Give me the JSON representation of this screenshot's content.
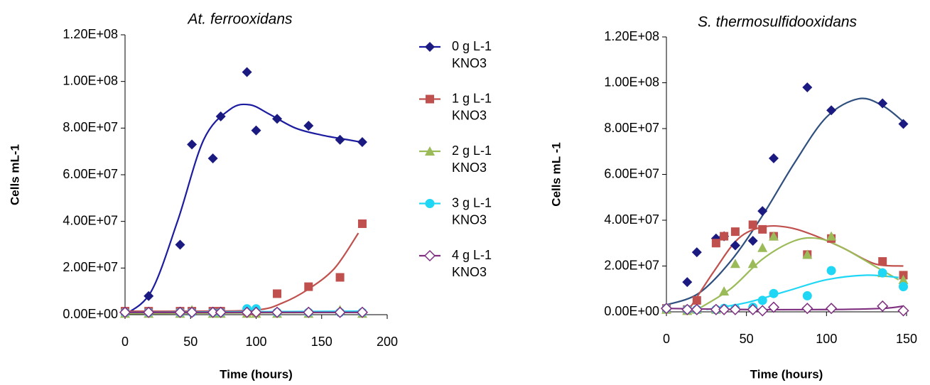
{
  "chart_data": [
    {
      "type": "scatter",
      "title": "At. ferrooxidans",
      "x_label": "Time (hours)",
      "y_label": "Cells mL-1",
      "xlim": [
        0,
        200
      ],
      "xticks": [
        0,
        50,
        100,
        150,
        200
      ],
      "ylim": [
        0,
        120000000
      ],
      "yticks": [
        {
          "value": 0,
          "label": "0.00E+00"
        },
        {
          "value": 20000000,
          "label": "2.00E+07"
        },
        {
          "value": 40000000,
          "label": "4.00E+07"
        },
        {
          "value": 60000000,
          "label": "6.00E+07"
        },
        {
          "value": 80000000,
          "label": "8.00E+07"
        },
        {
          "value": 100000000,
          "label": "1.00E+08"
        },
        {
          "value": 120000000,
          "label": "1.20E+08"
        }
      ],
      "legend": "right",
      "x": [
        0,
        18,
        42,
        51,
        67,
        73,
        93,
        100,
        116,
        140,
        164,
        181
      ],
      "series": [
        {
          "name": "0 g L-1 KNO3",
          "color": "#1a1a80",
          "line_color": "#1c1ca0",
          "marker": "diamond",
          "values": [
            1000000,
            8000000,
            30000000,
            73000000,
            67000000,
            85000000,
            104000000,
            79000000,
            84000000,
            81000000,
            75000000,
            74000000
          ],
          "trend_x": [
            0,
            20,
            40,
            60,
            80,
            95,
            110,
            130,
            150,
            170,
            180
          ],
          "trend_y": [
            0,
            10000000,
            40000000,
            75000000,
            88000000,
            90000000,
            86000000,
            80000000,
            77000000,
            75000000,
            74000000
          ]
        },
        {
          "name": "1 g L-1 KNO3",
          "color": "#c0504d",
          "line_color": "#c0504d",
          "marker": "square",
          "values": [
            1500000,
            1500000,
            1500000,
            1500000,
            1500000,
            1500000,
            1500000,
            1500000,
            9000000,
            12000000,
            16000000,
            39000000
          ],
          "trend_x": [
            0,
            50,
            100,
            120,
            140,
            160,
            178
          ],
          "trend_y": [
            1500000,
            1500000,
            2000000,
            5000000,
            11000000,
            20000000,
            35000000
          ]
        },
        {
          "name": "2 g L-1 KNO3",
          "color": "#9bbb59",
          "line_color": "#9bbb59",
          "marker": "triangle",
          "values": [
            500000,
            500000,
            500000,
            2000000,
            500000,
            500000,
            500000,
            500000,
            500000,
            500000,
            2000000,
            500000
          ],
          "trend_x": [
            0,
            178
          ],
          "trend_y": [
            500000,
            1000000
          ]
        },
        {
          "name": "3 g L-1 KNO3",
          "color": "#1fd7f5",
          "line_color": "#1fd7f5",
          "marker": "circle",
          "values": [
            1000000,
            1000000,
            1000000,
            1000000,
            1000000,
            1000000,
            2500000,
            2500000,
            1000000,
            1000000,
            1000000,
            1000000
          ],
          "trend_x": [
            0,
            178
          ],
          "trend_y": [
            1000000,
            1500000
          ]
        },
        {
          "name": "4 g L-1 KNO3",
          "color": "#7f2f7f",
          "line_color": "#7f2f7f",
          "marker": "open-diamond",
          "values": [
            1000000,
            1000000,
            1000000,
            1000000,
            1000000,
            1000000,
            1000000,
            1000000,
            1000000,
            1000000,
            1000000,
            1000000
          ],
          "trend_x": [
            0,
            178
          ],
          "trend_y": [
            1000000,
            1000000
          ]
        }
      ]
    },
    {
      "type": "scatter",
      "title": "S. thermosulfidooxidans",
      "x_label": "Time (hours)",
      "y_label": "Cells mL -1",
      "xlim": [
        0,
        150
      ],
      "xticks": [
        0,
        50,
        100,
        150
      ],
      "ylim": [
        0,
        120000000
      ],
      "yticks": [
        {
          "value": 0,
          "label": "0.00E+00"
        },
        {
          "value": 20000000,
          "label": "2.00E+07"
        },
        {
          "value": 40000000,
          "label": "4.00E+07"
        },
        {
          "value": 60000000,
          "label": "6.00E+07"
        },
        {
          "value": 80000000,
          "label": "8.00E+07"
        },
        {
          "value": 100000000,
          "label": "1.00E+08"
        },
        {
          "value": 120000000,
          "label": "1.20E+08"
        }
      ],
      "x": [
        0,
        13,
        19,
        31,
        36,
        43,
        54,
        60,
        67,
        88,
        103,
        135,
        148
      ],
      "series": [
        {
          "color": "#1a1a80",
          "line_color": "#2f4f7f",
          "marker": "diamond",
          "values": [
            1500000,
            13000000,
            26000000,
            32000000,
            33000000,
            29000000,
            31000000,
            44000000,
            67000000,
            98000000,
            88000000,
            91000000,
            82000000
          ],
          "trend_x": [
            0,
            20,
            40,
            60,
            80,
            100,
            120,
            135,
            148
          ],
          "trend_y": [
            3000000,
            8000000,
            22000000,
            42000000,
            65000000,
            85000000,
            93000000,
            90000000,
            83000000
          ]
        },
        {
          "color": "#c0504d",
          "line_color": "#c0504d",
          "marker": "square",
          "values": [
            1500000,
            1000000,
            5000000,
            30000000,
            33000000,
            35000000,
            38000000,
            36000000,
            33000000,
            25000000,
            32000000,
            22000000,
            16000000
          ],
          "trend_x": [
            15,
            30,
            45,
            60,
            75,
            90,
            110,
            130,
            148
          ],
          "trend_y": [
            2000000,
            18000000,
            32000000,
            37000000,
            37000000,
            34000000,
            28000000,
            21000000,
            20000000
          ]
        },
        {
          "color": "#9bbb59",
          "line_color": "#9bbb59",
          "marker": "triangle",
          "values": [
            1000000,
            500000,
            1000000,
            1000000,
            9000000,
            21000000,
            21000000,
            28000000,
            33000000,
            25000000,
            33000000,
            17000000,
            14000000
          ],
          "trend_x": [
            18,
            40,
            60,
            80,
            95,
            110,
            130,
            145
          ],
          "trend_y": [
            500000,
            10000000,
            23000000,
            31000000,
            32000000,
            28000000,
            20000000,
            14000000
          ]
        },
        {
          "color": "#1fd7f5",
          "line_color": "#1fd7f5",
          "marker": "circle",
          "values": [
            1500000,
            1000000,
            1000000,
            1000000,
            1500000,
            1500000,
            2000000,
            5000000,
            8000000,
            7000000,
            18000000,
            17000000,
            11000000
          ],
          "trend_x": [
            25,
            50,
            75,
            100,
            125,
            145
          ],
          "trend_y": [
            1000000,
            4000000,
            9000000,
            14000000,
            16000000,
            15000000
          ]
        },
        {
          "color": "#7f2f7f",
          "line_color": "#7f2f7f",
          "marker": "open-diamond",
          "values": [
            1500000,
            1000000,
            1000000,
            1000000,
            1000000,
            1000000,
            1000000,
            500000,
            2000000,
            1500000,
            1500000,
            2500000,
            500000
          ],
          "trend_x": [
            0,
            50,
            100,
            135,
            148
          ],
          "trend_y": [
            1500000,
            1000000,
            1000000,
            1500000,
            2500000
          ]
        }
      ]
    }
  ]
}
